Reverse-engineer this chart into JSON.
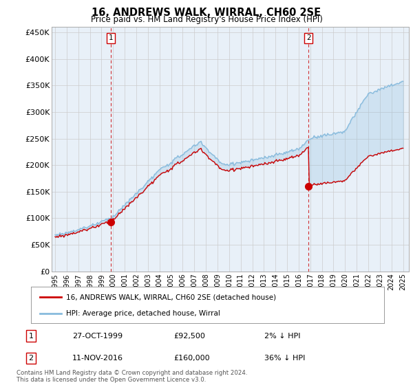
{
  "title": "16, ANDREWS WALK, WIRRAL, CH60 2SE",
  "subtitle": "Price paid vs. HM Land Registry's House Price Index (HPI)",
  "xlim_start": 1994.7,
  "xlim_end": 2025.5,
  "ylim": [
    0,
    460000
  ],
  "yticks": [
    0,
    50000,
    100000,
    150000,
    200000,
    250000,
    300000,
    350000,
    400000,
    450000
  ],
  "ytick_labels": [
    "£0",
    "£50K",
    "£100K",
    "£150K",
    "£200K",
    "£250K",
    "£300K",
    "£350K",
    "£400K",
    "£450K"
  ],
  "xticks": [
    1995,
    1996,
    1997,
    1998,
    1999,
    2000,
    2001,
    2002,
    2003,
    2004,
    2005,
    2006,
    2007,
    2008,
    2009,
    2010,
    2011,
    2012,
    2013,
    2014,
    2015,
    2016,
    2017,
    2018,
    2019,
    2020,
    2021,
    2022,
    2023,
    2024,
    2025
  ],
  "sale1_x": 1999.82,
  "sale1_y": 92500,
  "sale2_x": 2016.86,
  "sale2_y": 160000,
  "sale_color": "#cc0000",
  "hpi_color": "#88bbdd",
  "vline_color": "#cc0000",
  "chart_bg": "#e8f0f8",
  "annotation1_label": "1",
  "annotation2_label": "2",
  "legend_label1": "16, ANDREWS WALK, WIRRAL, CH60 2SE (detached house)",
  "legend_label2": "HPI: Average price, detached house, Wirral",
  "table_rows": [
    [
      "1",
      "27-OCT-1999",
      "£92,500",
      "2% ↓ HPI"
    ],
    [
      "2",
      "11-NOV-2016",
      "£160,000",
      "36% ↓ HPI"
    ]
  ],
  "footer": "Contains HM Land Registry data © Crown copyright and database right 2024.\nThis data is licensed under the Open Government Licence v3.0.",
  "background_color": "#ffffff",
  "grid_color": "#cccccc"
}
